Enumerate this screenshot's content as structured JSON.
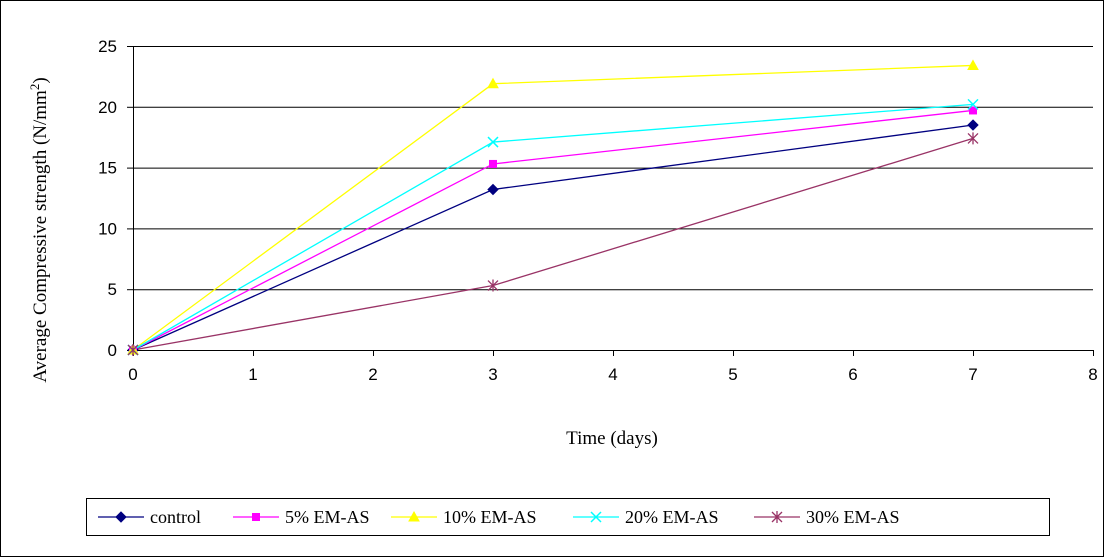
{
  "chart_data": {
    "type": "line",
    "title": "",
    "xlabel": "Time (days)",
    "ylabel_main": "Average Compressive strength (N/mm",
    "ylabel_sup": "2",
    "ylabel_end": ")",
    "xlim": [
      0,
      8
    ],
    "ylim": [
      0,
      25
    ],
    "x_ticks": [
      "0",
      "1",
      "2",
      "3",
      "4",
      "5",
      "6",
      "7",
      "8"
    ],
    "y_ticks": [
      "0",
      "5",
      "10",
      "15",
      "20",
      "25"
    ],
    "grid": "horizontal",
    "legend_position": "bottom",
    "x": [
      0,
      3,
      7
    ],
    "series": [
      {
        "name": "control",
        "values": [
          0,
          13.2,
          18.5
        ],
        "color": "#000080",
        "marker": "diamond"
      },
      {
        "name": "5% EM-AS",
        "values": [
          0,
          15.3,
          19.7
        ],
        "color": "#FF00FF",
        "marker": "square"
      },
      {
        "name": "10% EM-AS",
        "values": [
          0,
          21.9,
          23.4
        ],
        "color": "#FFFF00",
        "marker": "triangle"
      },
      {
        "name": "20% EM-AS",
        "values": [
          0,
          17.1,
          20.2
        ],
        "color": "#00FFFF",
        "marker": "x"
      },
      {
        "name": "30% EM-AS",
        "values": [
          0,
          5.3,
          17.4
        ],
        "color": "#993366",
        "marker": "star"
      }
    ]
  }
}
